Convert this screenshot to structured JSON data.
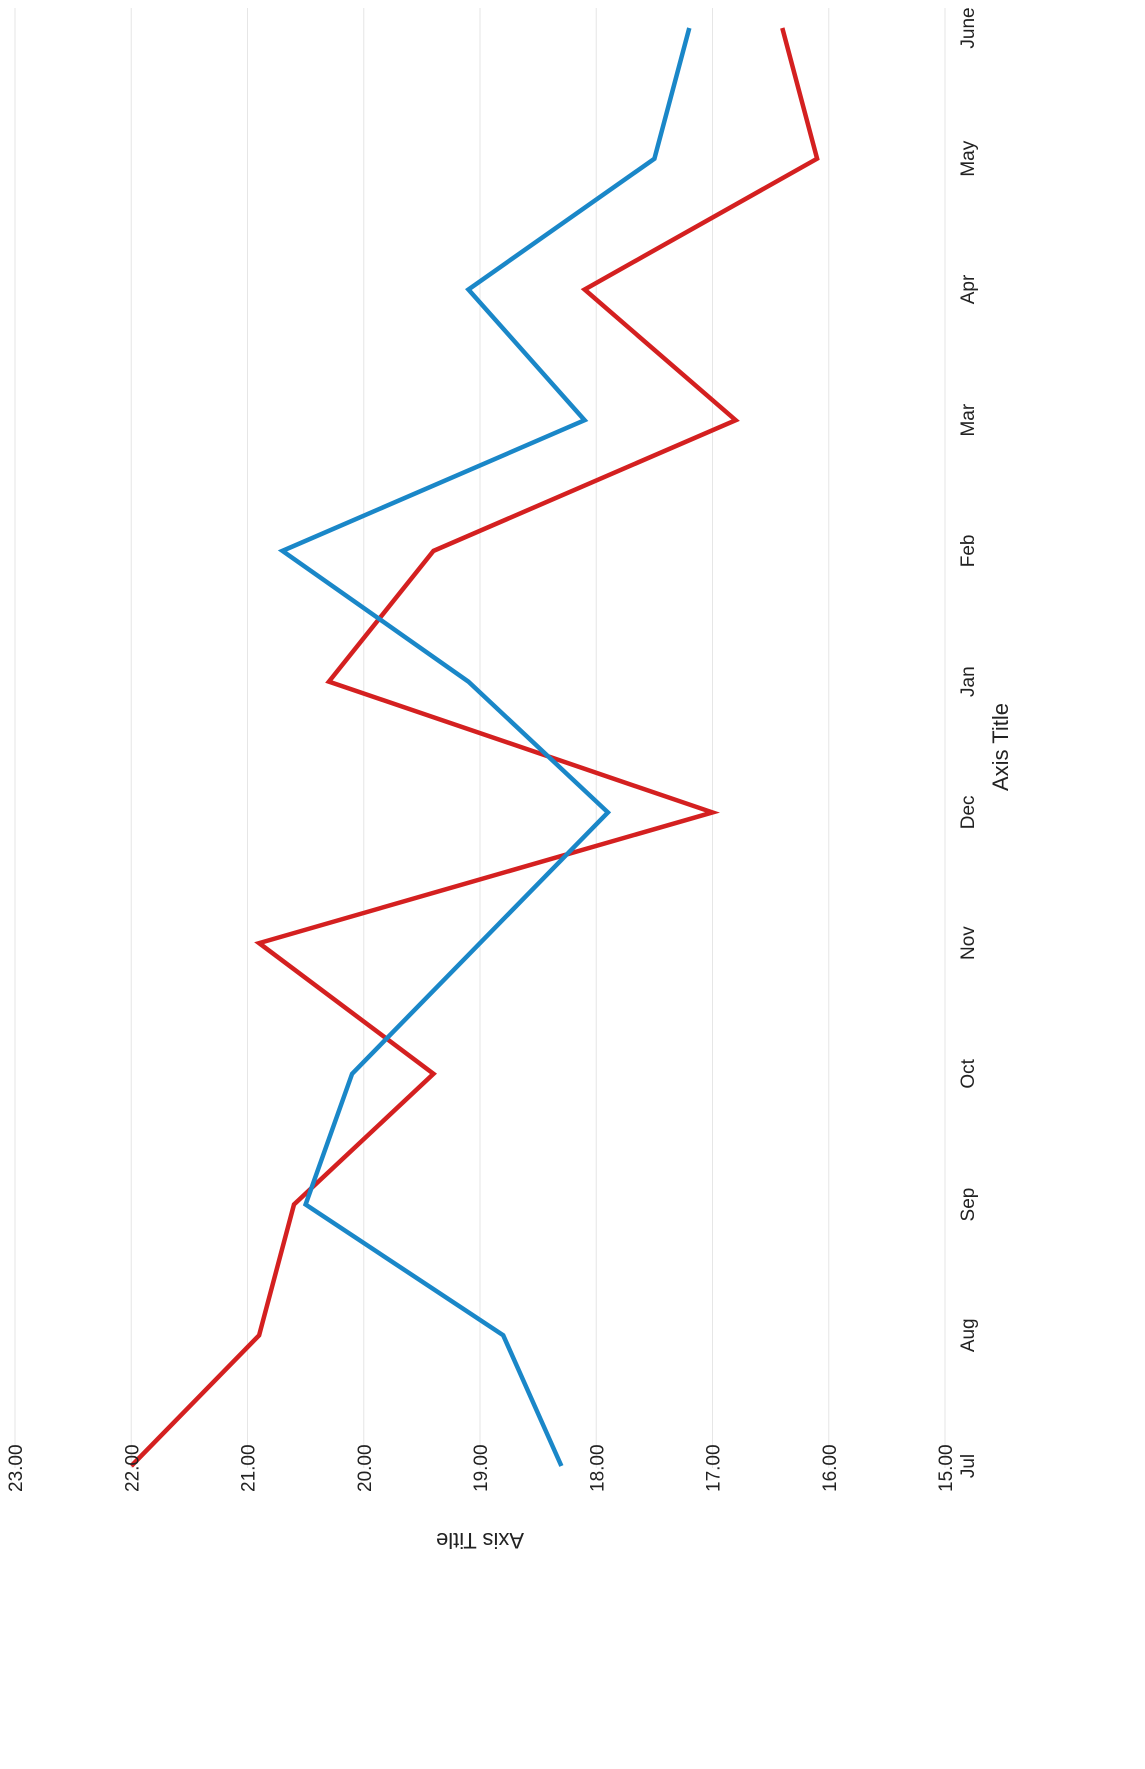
{
  "chart_data": {
    "type": "line",
    "orientation": "rotated-90-clockwise",
    "categories": [
      "Jul",
      "Aug",
      "Sep",
      "Oct",
      "Nov",
      "Dec",
      "Jan",
      "Feb",
      "Mar",
      "Apr",
      "May",
      "June"
    ],
    "series": [
      {
        "color": "#d42020",
        "values": [
          22.0,
          20.9,
          20.6,
          19.4,
          20.9,
          17.0,
          20.3,
          19.4,
          16.8,
          18.1,
          16.1,
          16.4
        ]
      },
      {
        "color": "#1a87c8",
        "values": [
          18.3,
          18.8,
          20.5,
          20.1,
          null,
          17.9,
          19.1,
          20.7,
          18.1,
          19.1,
          17.5,
          17.2
        ]
      }
    ],
    "xlabel": "Axis Title",
    "ylabel": "Axis Title",
    "ylim": [
      15.0,
      23.0
    ],
    "yticks": [
      "15.00",
      "16.00",
      "17.00",
      "18.00",
      "19.00",
      "20.00",
      "21.00",
      "22.00",
      "23.00"
    ],
    "grid": true,
    "legend": "none"
  }
}
